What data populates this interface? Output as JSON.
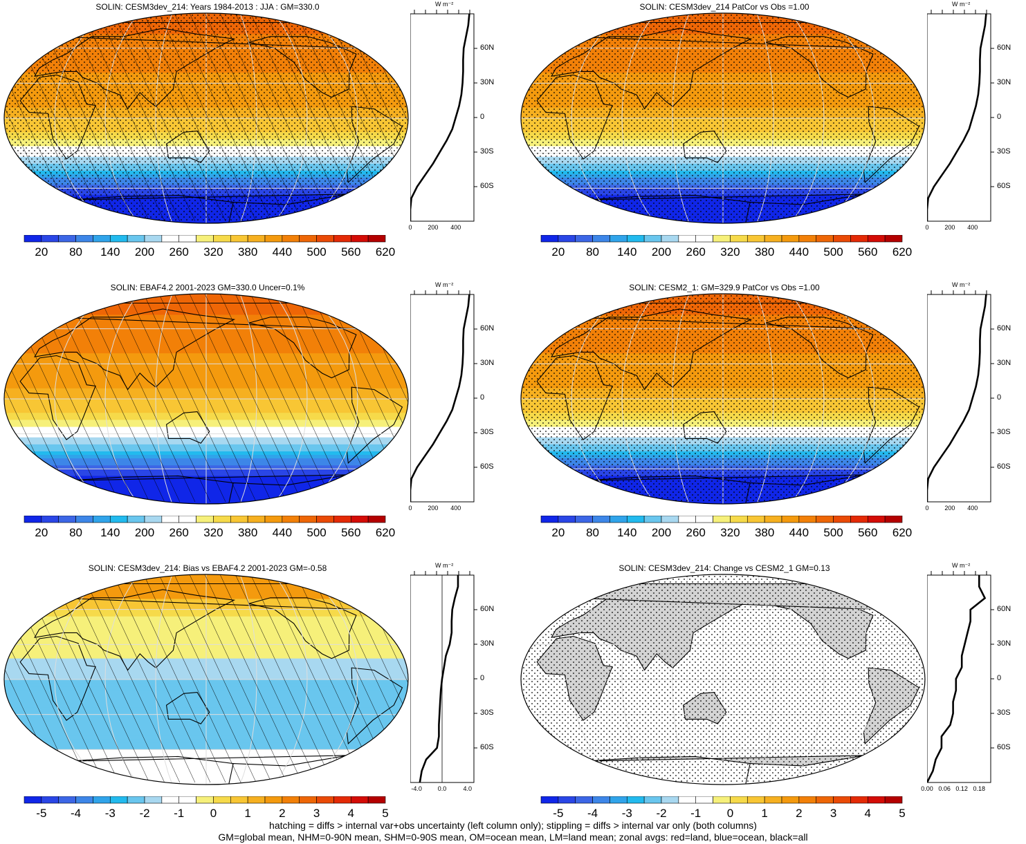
{
  "panels": [
    {
      "id": "p1",
      "title": "SOLIN: CESM3dev_214: Years 1984-2013 : JJA : GM=330.0",
      "field": "absolute",
      "hatching": true,
      "stippling": true,
      "colorbar_labels": [
        "20",
        "80",
        "140",
        "200",
        "260",
        "320",
        "380",
        "440",
        "500",
        "560",
        "620"
      ],
      "zonal_y_labels": [
        "60N",
        "30N",
        "0",
        "30S",
        "60S"
      ],
      "zonal_x_labels": [
        "0",
        "200",
        "400"
      ],
      "zonal_units": "W m⁻²"
    },
    {
      "id": "p2",
      "title": "SOLIN: CESM3dev_214 PatCor vs Obs =1.00",
      "field": "absolute",
      "hatching": false,
      "stippling": true,
      "colorbar_labels": [
        "20",
        "80",
        "140",
        "200",
        "260",
        "320",
        "380",
        "440",
        "500",
        "560",
        "620"
      ],
      "zonal_y_labels": [
        "60N",
        "30N",
        "0",
        "30S",
        "60S"
      ],
      "zonal_x_labels": [
        "0",
        "200",
        "400"
      ],
      "zonal_units": "W m⁻²"
    },
    {
      "id": "p3",
      "title": "SOLIN: EBAF4.2 2001-2023 GM=330.0 Uncer=0.1%",
      "field": "absolute",
      "hatching": true,
      "stippling": false,
      "colorbar_labels": [
        "20",
        "80",
        "140",
        "200",
        "260",
        "320",
        "380",
        "440",
        "500",
        "560",
        "620"
      ],
      "zonal_y_labels": [
        "60N",
        "30N",
        "0",
        "30S",
        "60S"
      ],
      "zonal_x_labels": [
        "0",
        "200",
        "400"
      ],
      "zonal_units": "W m⁻²"
    },
    {
      "id": "p4",
      "title": "SOLIN: CESM2_1: GM=329.9 PatCor vs Obs =1.00",
      "field": "absolute",
      "hatching": false,
      "stippling": true,
      "colorbar_labels": [
        "20",
        "80",
        "140",
        "200",
        "260",
        "320",
        "380",
        "440",
        "500",
        "560",
        "620"
      ],
      "zonal_y_labels": [
        "60N",
        "30N",
        "0",
        "30S",
        "60S"
      ],
      "zonal_x_labels": [
        "0",
        "200",
        "400"
      ],
      "zonal_units": "W m⁻²"
    },
    {
      "id": "p5",
      "title": "SOLIN: CESM3dev_214: Bias vs EBAF4.2 2001-2023 GM=-0.58",
      "field": "bias",
      "hatching": true,
      "stippling": false,
      "colorbar_labels": [
        "-5",
        "-4",
        "-3",
        "-2",
        "-1",
        "0",
        "1",
        "2",
        "3",
        "4",
        "5"
      ],
      "zonal_y_labels": [
        "60N",
        "30N",
        "0",
        "30S",
        "60S"
      ],
      "zonal_x_labels": [
        "-4.0",
        "0.0",
        "4.0"
      ],
      "zonal_units": "W m⁻²"
    },
    {
      "id": "p6",
      "title": "SOLIN: CESM3dev_214: Change vs CESM2_1 GM=0.13",
      "field": "change",
      "hatching": false,
      "stippling": true,
      "colorbar_labels": [
        "-5",
        "-4",
        "-3",
        "-2",
        "-1",
        "0",
        "1",
        "2",
        "3",
        "4",
        "5"
      ],
      "zonal_y_labels": [
        "60N",
        "30N",
        "0",
        "30S",
        "60S"
      ],
      "zonal_x_labels": [
        "0.00",
        "0.06",
        "0.12",
        "0.18"
      ],
      "zonal_units": "W m⁻²"
    }
  ],
  "colorbar_colors": [
    "#1026e8",
    "#2a46e6",
    "#3c66e6",
    "#3d86e8",
    "#30a4ea",
    "#22baee",
    "#69c6ee",
    "#a8d8f0",
    "#ffffff",
    "#ffffff",
    "#f6f07a",
    "#f6da4a",
    "#f8c634",
    "#f6b020",
    "#f49a0e",
    "#f28008",
    "#ee6606",
    "#ea4a06",
    "#e42a06",
    "#d40c06",
    "#b40000"
  ],
  "zonal_profiles": {
    "absolute_jja": {
      "lat": [
        -90,
        -80,
        -70,
        -60,
        -50,
        -40,
        -30,
        -20,
        -10,
        0,
        10,
        20,
        30,
        40,
        50,
        60,
        70,
        80,
        90
      ],
      "value": [
        0,
        0,
        10,
        60,
        130,
        200,
        260,
        320,
        370,
        400,
        430,
        450,
        460,
        465,
        465,
        470,
        490,
        510,
        520
      ]
    },
    "bias": {
      "lat": [
        -90,
        -80,
        -70,
        -60,
        -50,
        -40,
        -30,
        -20,
        -10,
        0,
        10,
        20,
        30,
        40,
        50,
        60,
        70,
        80,
        90
      ],
      "value": [
        -3.5,
        -3.2,
        -2.5,
        -0.8,
        -0.5,
        -0.5,
        -0.4,
        -0.3,
        -0.2,
        0,
        0.3,
        0.6,
        1.2,
        1.5,
        1.5,
        1.6,
        2.0,
        2.5,
        2.5
      ]
    },
    "change": {
      "lat": [
        -90,
        -80,
        -70,
        -60,
        -50,
        -40,
        -30,
        -20,
        -10,
        0,
        10,
        20,
        30,
        40,
        50,
        60,
        70,
        80,
        90
      ],
      "value": [
        0.0,
        0.02,
        0.03,
        0.05,
        0.05,
        0.08,
        0.09,
        0.09,
        0.1,
        0.1,
        0.12,
        0.12,
        0.13,
        0.14,
        0.15,
        0.15,
        0.2,
        0.18,
        0.18
      ]
    }
  },
  "footer": {
    "line1": "hatching = diffs > internal var+obs uncertainty (left column only); stippling = diffs > internal var only (both columns)",
    "line2": "GM=global mean, NHM=0-90N mean, SHM=0-90S mean, OM=ocean mean, LM=land mean; zonal avgs: red=land, blue=ocean, black=all"
  }
}
